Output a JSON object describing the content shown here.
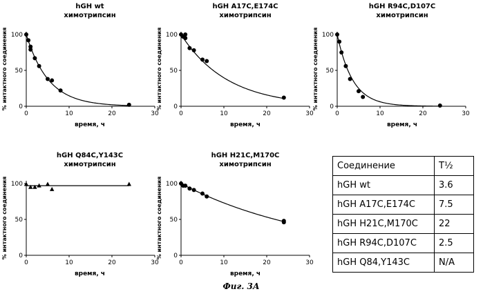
{
  "chart_data": [
    {
      "type": "scatter",
      "title": "hGH wt",
      "subtitle": "химотрипсин",
      "xlabel": "время, ч",
      "ylabel": "% интактного соединения",
      "xlim": [
        0,
        30
      ],
      "ylim": [
        0,
        100
      ],
      "xticks": [
        0,
        10,
        20,
        30
      ],
      "yticks": [
        0,
        50,
        100
      ],
      "marker": "circle",
      "points": [
        [
          0,
          100
        ],
        [
          0.5,
          92
        ],
        [
          1,
          83
        ],
        [
          1,
          79
        ],
        [
          2,
          67
        ],
        [
          3,
          56
        ],
        [
          5,
          38
        ],
        [
          6,
          36
        ],
        [
          8,
          22
        ],
        [
          24,
          2
        ]
      ],
      "fit_half_life": 3.6
    },
    {
      "type": "scatter",
      "title": "hGH A17C,E174C",
      "subtitle": "химотрипсин",
      "xlabel": "время, ч",
      "ylabel": "% интактного соединения",
      "xlim": [
        0,
        30
      ],
      "ylim": [
        0,
        100
      ],
      "xticks": [
        0,
        10,
        20,
        30
      ],
      "yticks": [
        0,
        50,
        100
      ],
      "marker": "circle",
      "points": [
        [
          0,
          100
        ],
        [
          0.5,
          97
        ],
        [
          1,
          95
        ],
        [
          1,
          100
        ],
        [
          2,
          81
        ],
        [
          3,
          78
        ],
        [
          5,
          65
        ],
        [
          6,
          63
        ],
        [
          24,
          12
        ]
      ],
      "fit_half_life": 7.5
    },
    {
      "type": "scatter",
      "title": "hGH R94C,D107C",
      "subtitle": "химотрипсин",
      "xlabel": "время, ч",
      "ylabel": "% интактного соединения",
      "xlim": [
        0,
        30
      ],
      "ylim": [
        0,
        100
      ],
      "xticks": [
        0,
        10,
        20,
        30
      ],
      "yticks": [
        0,
        50,
        100
      ],
      "marker": "circle",
      "points": [
        [
          0,
          100
        ],
        [
          0.5,
          90
        ],
        [
          1,
          75
        ],
        [
          2,
          56
        ],
        [
          3,
          38
        ],
        [
          5,
          21
        ],
        [
          6,
          13
        ],
        [
          24,
          1
        ]
      ],
      "fit_half_life": 2.5
    },
    {
      "type": "scatter",
      "title": "hGH Q84C,Y143C",
      "subtitle": "химотрипсин",
      "xlabel": "время, ч",
      "ylabel": "% интактного соединения",
      "xlim": [
        0,
        30
      ],
      "ylim": [
        0,
        100
      ],
      "xticks": [
        0,
        10,
        20,
        30
      ],
      "yticks": [
        0,
        50,
        100
      ],
      "marker": "triangle",
      "points": [
        [
          0,
          99
        ],
        [
          1,
          95
        ],
        [
          2,
          95
        ],
        [
          3,
          97
        ],
        [
          5,
          99
        ],
        [
          6,
          92
        ],
        [
          24,
          99
        ]
      ],
      "fit_constant": 97
    },
    {
      "type": "scatter",
      "title": "hGH H21C,M170C",
      "subtitle": "химотрипсин",
      "xlabel": "время, ч",
      "ylabel": "% интактного соединения",
      "xlim": [
        0,
        30
      ],
      "ylim": [
        0,
        100
      ],
      "xticks": [
        0,
        10,
        20,
        30
      ],
      "yticks": [
        0,
        50,
        100
      ],
      "marker": "circle",
      "points": [
        [
          0,
          100
        ],
        [
          0.5,
          97
        ],
        [
          1,
          97
        ],
        [
          2,
          93
        ],
        [
          3,
          91
        ],
        [
          5,
          86
        ],
        [
          6,
          82
        ],
        [
          24,
          46
        ],
        [
          24,
          48
        ]
      ],
      "fit_half_life": 22
    }
  ],
  "table": {
    "header": [
      "Соединение",
      "T½"
    ],
    "rows": [
      [
        "hGH wt",
        "3.6"
      ],
      [
        "hGH A17C,E174C",
        "7.5"
      ],
      [
        "hGH H21C,M170C",
        "22"
      ],
      [
        "hGH R94C,D107C",
        "2.5"
      ],
      [
        "hGH Q84,Y143C",
        "N/A"
      ]
    ]
  },
  "caption": "Фиг. 3А"
}
